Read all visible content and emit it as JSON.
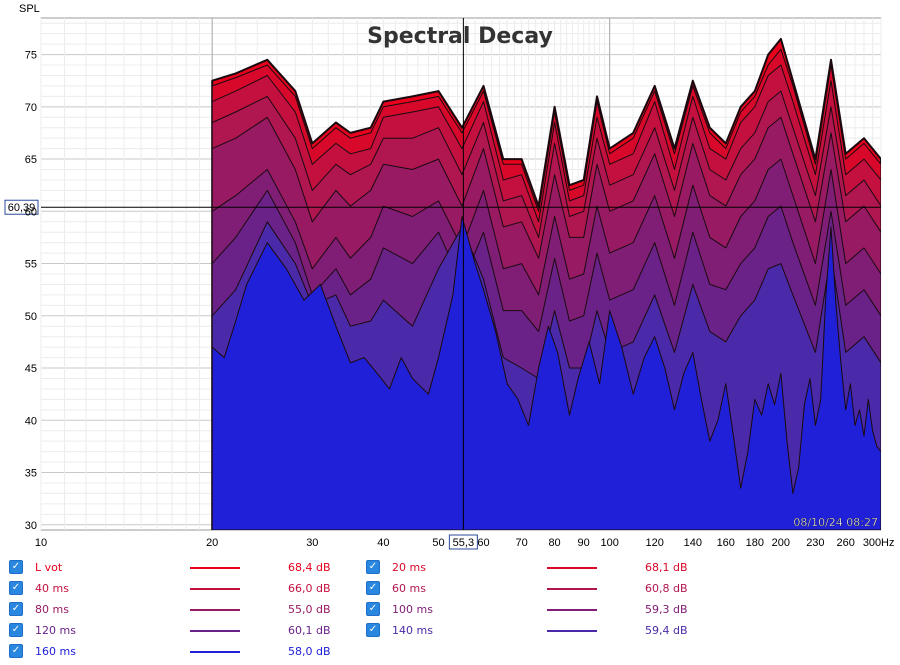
{
  "chart_data": {
    "type": "area",
    "title": "Spectral Decay",
    "ylabel": "SPL",
    "xunit": "Hz",
    "ylim": [
      29.5,
      78.5
    ],
    "xlim": [
      10,
      300
    ],
    "xscale": "log",
    "yticks": [
      "75",
      "70",
      "65",
      "60",
      "55",
      "50",
      "45",
      "40",
      "35",
      "30"
    ],
    "xticks": [
      "10",
      "20",
      "30",
      "40",
      "50",
      "60",
      "70",
      "80",
      "90",
      "100",
      "120",
      "140",
      "160",
      "180",
      "200",
      "230",
      "260",
      "300"
    ],
    "cursor": {
      "x": 55.3,
      "y": 60.39,
      "x_label": "55,3",
      "y_label": "60,39"
    },
    "timestamp": "08/10/24 08:27",
    "series": [
      {
        "name": "L vot",
        "value_label": "68,4 dB",
        "color": "#e8001c",
        "x": [
          20,
          22,
          25,
          28,
          30,
          33,
          35,
          38,
          40,
          45,
          50,
          55,
          60,
          65,
          70,
          75,
          80,
          85,
          90,
          95,
          100,
          110,
          120,
          130,
          140,
          150,
          160,
          170,
          180,
          190,
          200,
          210,
          230,
          245,
          260,
          280,
          300
        ],
        "y": [
          72.5,
          73.2,
          74.5,
          71.5,
          66.5,
          68.5,
          67.5,
          68.0,
          70.5,
          71.0,
          71.5,
          68.0,
          72.0,
          65.0,
          65.0,
          60.5,
          70.0,
          62.5,
          63.0,
          71.0,
          66.0,
          67.5,
          72.0,
          66.0,
          72.5,
          68.0,
          66.5,
          70.0,
          71.5,
          75.0,
          76.5,
          72.5,
          65.0,
          74.5,
          65.5,
          67.0,
          65.0
        ]
      },
      {
        "name": "20 ms",
        "value_label": "68,1 dB",
        "color": "#d8082a",
        "x": [
          20,
          22,
          25,
          28,
          30,
          33,
          35,
          38,
          40,
          45,
          50,
          55,
          60,
          65,
          70,
          75,
          80,
          85,
          90,
          95,
          100,
          110,
          120,
          130,
          140,
          150,
          160,
          170,
          180,
          190,
          200,
          210,
          230,
          245,
          260,
          280,
          300
        ],
        "y": [
          72.0,
          72.8,
          74.0,
          71.0,
          66.0,
          68.0,
          67.0,
          67.5,
          70.0,
          70.5,
          71.0,
          67.5,
          71.5,
          64.5,
          64.5,
          60.0,
          69.5,
          62.0,
          62.5,
          70.5,
          65.5,
          67.0,
          71.5,
          65.5,
          72.0,
          67.5,
          66.0,
          69.5,
          71.0,
          74.0,
          75.5,
          72.0,
          64.5,
          74.0,
          65.0,
          66.5,
          64.5
        ]
      },
      {
        "name": "40 ms",
        "value_label": "66,0 dB",
        "color": "#c4103e",
        "x": [
          20,
          22,
          25,
          28,
          30,
          33,
          35,
          38,
          40,
          45,
          50,
          55,
          60,
          65,
          70,
          75,
          80,
          85,
          90,
          95,
          100,
          110,
          120,
          130,
          140,
          150,
          160,
          170,
          180,
          190,
          200,
          210,
          230,
          245,
          260,
          280,
          300
        ],
        "y": [
          70.5,
          71.5,
          73.0,
          69.5,
          64.5,
          66.5,
          65.5,
          66.0,
          69.0,
          69.5,
          70.0,
          66.0,
          70.5,
          63.0,
          63.5,
          59.0,
          68.5,
          61.0,
          61.5,
          69.0,
          64.5,
          65.5,
          70.5,
          64.0,
          71.0,
          66.0,
          65.0,
          68.5,
          70.0,
          73.0,
          74.0,
          70.5,
          63.5,
          72.5,
          63.5,
          65.0,
          63.0
        ]
      },
      {
        "name": "60 ms",
        "value_label": "60,8 dB",
        "color": "#b0164f",
        "x": [
          20,
          22,
          25,
          28,
          30,
          33,
          35,
          38,
          40,
          45,
          50,
          55,
          60,
          65,
          70,
          75,
          80,
          85,
          90,
          95,
          100,
          110,
          120,
          130,
          140,
          150,
          160,
          170,
          180,
          190,
          200,
          210,
          230,
          245,
          260,
          280,
          300
        ],
        "y": [
          68.5,
          69.5,
          71.0,
          67.0,
          62.0,
          64.5,
          63.5,
          64.5,
          67.0,
          67.0,
          68.0,
          63.5,
          68.5,
          61.0,
          61.5,
          57.5,
          66.5,
          59.5,
          60.0,
          67.0,
          62.5,
          63.5,
          68.0,
          62.0,
          69.0,
          64.0,
          63.0,
          66.0,
          67.5,
          70.5,
          71.5,
          68.0,
          61.5,
          70.0,
          61.5,
          63.0,
          60.5
        ]
      },
      {
        "name": "80 ms",
        "value_label": "55,0 dB",
        "color": "#981a62",
        "x": [
          20,
          22,
          25,
          28,
          30,
          33,
          35,
          38,
          40,
          45,
          50,
          55,
          60,
          65,
          70,
          75,
          80,
          85,
          90,
          95,
          100,
          110,
          120,
          130,
          140,
          150,
          160,
          170,
          180,
          190,
          200,
          210,
          230,
          245,
          260,
          280,
          300
        ],
        "y": [
          66.0,
          67.0,
          69.0,
          64.0,
          59.0,
          62.0,
          60.5,
          62.0,
          64.5,
          64.0,
          65.0,
          60.5,
          66.0,
          58.5,
          59.0,
          55.5,
          63.5,
          57.5,
          57.5,
          64.5,
          60.0,
          61.0,
          65.5,
          59.5,
          66.5,
          61.5,
          60.5,
          63.5,
          65.0,
          68.0,
          69.0,
          65.5,
          59.0,
          67.5,
          59.0,
          60.5,
          58.0
        ]
      },
      {
        "name": "100 ms",
        "value_label": "59,3 dB",
        "color": "#801e75",
        "x": [
          20,
          22,
          25,
          28,
          30,
          33,
          35,
          38,
          40,
          45,
          50,
          55,
          60,
          65,
          70,
          75,
          80,
          85,
          90,
          95,
          100,
          110,
          120,
          130,
          140,
          150,
          160,
          170,
          180,
          190,
          200,
          210,
          230,
          245,
          260,
          280,
          300
        ],
        "y": [
          60.0,
          61.5,
          64.0,
          59.0,
          54.5,
          57.5,
          55.5,
          57.5,
          60.5,
          59.5,
          61.0,
          56.5,
          62.0,
          54.5,
          55.0,
          52.0,
          59.5,
          53.5,
          54.0,
          60.5,
          56.0,
          57.0,
          61.5,
          55.5,
          62.5,
          57.5,
          56.5,
          59.5,
          61.0,
          64.0,
          65.0,
          61.5,
          55.0,
          64.0,
          55.0,
          56.5,
          54.0
        ]
      },
      {
        "name": "120 ms",
        "value_label": "60,1 dB",
        "color": "#6a2288",
        "x": [
          20,
          22,
          25,
          28,
          30,
          33,
          35,
          38,
          40,
          45,
          50,
          55,
          60,
          65,
          70,
          75,
          80,
          85,
          90,
          95,
          100,
          110,
          120,
          130,
          140,
          150,
          160,
          170,
          180,
          190,
          200,
          210,
          230,
          245,
          260,
          280,
          300
        ],
        "y": [
          55.0,
          57.5,
          62.0,
          57.0,
          52.0,
          54.5,
          52.0,
          53.5,
          56.5,
          55.0,
          58.0,
          53.0,
          58.0,
          50.5,
          50.5,
          48.5,
          55.5,
          49.5,
          50.0,
          56.0,
          51.5,
          52.5,
          57.0,
          51.0,
          58.0,
          53.0,
          52.5,
          55.0,
          56.5,
          59.5,
          60.5,
          57.0,
          51.0,
          60.0,
          51.0,
          52.5,
          50.0
        ]
      },
      {
        "name": "140 ms",
        "value_label": "59,4 dB",
        "color": "#4a2aa8",
        "x": [
          20,
          22,
          25,
          28,
          30,
          33,
          35,
          38,
          40,
          45,
          50,
          55,
          60,
          65,
          70,
          75,
          80,
          85,
          90,
          95,
          100,
          110,
          120,
          130,
          140,
          150,
          160,
          170,
          180,
          190,
          200,
          210,
          230,
          245,
          260,
          280,
          300
        ],
        "y": [
          50.0,
          52.5,
          59.0,
          55.0,
          51.0,
          52.0,
          49.0,
          49.5,
          51.5,
          49.0,
          54.5,
          58.5,
          53.5,
          46.0,
          45.0,
          44.0,
          50.5,
          45.0,
          45.0,
          50.5,
          46.5,
          47.5,
          52.0,
          46.5,
          53.0,
          48.5,
          47.5,
          50.0,
          51.5,
          54.5,
          55.0,
          52.0,
          46.5,
          56.0,
          46.5,
          48.0,
          45.5
        ]
      },
      {
        "name": "160 ms",
        "value_label": "58,0 dB",
        "color": "#2020d8",
        "x": [
          20,
          21,
          22,
          23,
          25,
          27,
          29,
          31,
          33,
          35,
          37,
          39,
          41,
          43,
          45,
          48,
          50,
          53,
          55,
          58,
          60,
          63,
          66,
          69,
          72,
          75,
          78,
          81,
          85,
          88,
          92,
          96,
          100,
          105,
          110,
          115,
          120,
          125,
          130,
          135,
          140,
          145,
          150,
          155,
          160,
          165,
          170,
          175,
          180,
          185,
          190,
          195,
          200,
          205,
          210,
          215,
          220,
          225,
          230,
          235,
          240,
          245,
          250,
          255,
          260,
          265,
          270,
          275,
          280,
          285,
          290,
          295,
          300
        ],
        "y": [
          47.0,
          46.0,
          49.5,
          53.0,
          57.0,
          54.5,
          51.5,
          53.0,
          49.0,
          45.5,
          46.0,
          44.5,
          43.0,
          46.0,
          44.0,
          42.5,
          46.0,
          52.0,
          59.5,
          55.0,
          52.5,
          48.5,
          43.5,
          42.0,
          39.5,
          45.0,
          49.0,
          46.5,
          40.5,
          44.0,
          47.5,
          43.5,
          50.5,
          47.0,
          42.5,
          46.0,
          48.0,
          45.0,
          41.0,
          44.5,
          46.5,
          42.0,
          38.0,
          40.0,
          43.5,
          38.5,
          33.5,
          37.0,
          42.0,
          40.5,
          43.5,
          41.5,
          44.5,
          38.0,
          33.0,
          35.5,
          41.5,
          44.0,
          39.5,
          42.0,
          52.0,
          58.5,
          51.0,
          45.5,
          41.0,
          43.5,
          39.5,
          41.0,
          38.5,
          42.0,
          39.0,
          37.5,
          37.0
        ]
      }
    ]
  },
  "legend_check_glyph": "✓"
}
